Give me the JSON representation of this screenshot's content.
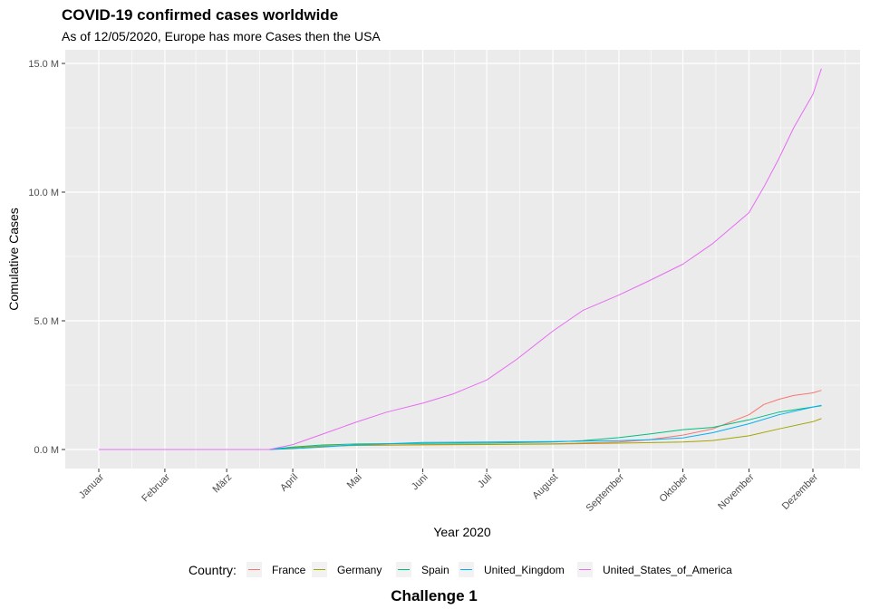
{
  "chart_data": {
    "type": "line",
    "title": "COVID-19 confirmed cases worldwide",
    "subtitle": "As of 12/05/2020, Europe has more Cases then the USA",
    "caption": "Challenge 1",
    "xlabel": "Year 2020",
    "ylabel": "Comulative Cases",
    "ylim": [
      0,
      15000000
    ],
    "yticks": [
      0,
      5000000,
      10000000,
      15000000
    ],
    "ytick_labels": [
      "0.0 M",
      "5.0 M",
      "10.0 M",
      "15.0 M"
    ],
    "x_domain": [
      "2020-01-01",
      "2020-12-05"
    ],
    "xticks": [
      "2020-01-01",
      "2020-02-01",
      "2020-03-01",
      "2020-04-01",
      "2020-05-01",
      "2020-06-01",
      "2020-07-01",
      "2020-08-01",
      "2020-09-01",
      "2020-10-01",
      "2020-11-01",
      "2020-12-01"
    ],
    "xtick_labels": [
      "Januar",
      "Februar",
      "März",
      "April",
      "Mai",
      "Juni",
      "Juli",
      "August",
      "September",
      "Oktober",
      "November",
      "Dezember"
    ],
    "grid": true,
    "legend": {
      "title": "Country:",
      "position": "bottom"
    },
    "series": [
      {
        "name": "France",
        "color": "#F8766D",
        "x": [
          "2020-01-01",
          "2020-03-21",
          "2020-04-01",
          "2020-04-15",
          "2020-05-01",
          "2020-06-01",
          "2020-07-01",
          "2020-08-01",
          "2020-09-01",
          "2020-09-15",
          "2020-10-01",
          "2020-10-15",
          "2020-11-01",
          "2020-11-08",
          "2020-11-15",
          "2020-11-22",
          "2020-12-01",
          "2020-12-05"
        ],
        "y": [
          0,
          0,
          60000,
          130000,
          170000,
          190000,
          200000,
          220000,
          290000,
          380000,
          560000,
          800000,
          1350000,
          1750000,
          1950000,
          2100000,
          2200000,
          2300000
        ]
      },
      {
        "name": "Germany",
        "color": "#A3A500",
        "x": [
          "2020-01-01",
          "2020-03-21",
          "2020-04-01",
          "2020-04-15",
          "2020-05-01",
          "2020-06-01",
          "2020-07-01",
          "2020-08-01",
          "2020-09-01",
          "2020-10-01",
          "2020-10-15",
          "2020-11-01",
          "2020-11-15",
          "2020-12-01",
          "2020-12-05"
        ],
        "y": [
          0,
          0,
          70000,
          130000,
          160000,
          180000,
          195000,
          210000,
          245000,
          290000,
          350000,
          530000,
          800000,
          1080000,
          1200000
        ]
      },
      {
        "name": "Spain",
        "color": "#00BF7D",
        "x": [
          "2020-01-01",
          "2020-03-21",
          "2020-04-01",
          "2020-04-15",
          "2020-05-01",
          "2020-06-01",
          "2020-07-01",
          "2020-08-01",
          "2020-08-15",
          "2020-09-01",
          "2020-09-15",
          "2020-10-01",
          "2020-10-15",
          "2020-11-01",
          "2020-11-15",
          "2020-12-01",
          "2020-12-05"
        ],
        "y": [
          0,
          0,
          100000,
          175000,
          215000,
          240000,
          250000,
          290000,
          340000,
          460000,
          600000,
          770000,
          860000,
          1150000,
          1450000,
          1650000,
          1700000
        ]
      },
      {
        "name": "United_Kingdom",
        "color": "#00B0F6",
        "x": [
          "2020-01-01",
          "2020-03-21",
          "2020-04-01",
          "2020-04-15",
          "2020-05-01",
          "2020-06-01",
          "2020-07-01",
          "2020-08-01",
          "2020-09-01",
          "2020-09-15",
          "2020-10-01",
          "2020-10-15",
          "2020-11-01",
          "2020-11-15",
          "2020-12-01",
          "2020-12-05"
        ],
        "y": [
          0,
          0,
          30000,
          100000,
          180000,
          270000,
          290000,
          310000,
          340000,
          380000,
          450000,
          650000,
          1000000,
          1350000,
          1650000,
          1720000
        ]
      },
      {
        "name": "United_States_of_America",
        "color": "#E76BF3",
        "x": [
          "2020-01-01",
          "2020-03-21",
          "2020-04-01",
          "2020-04-15",
          "2020-05-01",
          "2020-05-15",
          "2020-06-01",
          "2020-06-15",
          "2020-07-01",
          "2020-07-15",
          "2020-08-01",
          "2020-08-15",
          "2020-09-01",
          "2020-09-15",
          "2020-10-01",
          "2020-10-15",
          "2020-11-01",
          "2020-11-08",
          "2020-11-15",
          "2020-11-22",
          "2020-12-01",
          "2020-12-05"
        ],
        "y": [
          0,
          0,
          190000,
          600000,
          1070000,
          1450000,
          1800000,
          2150000,
          2700000,
          3500000,
          4600000,
          5400000,
          6000000,
          6550000,
          7200000,
          8000000,
          9200000,
          10200000,
          11300000,
          12500000,
          13800000,
          14800000
        ]
      }
    ]
  }
}
